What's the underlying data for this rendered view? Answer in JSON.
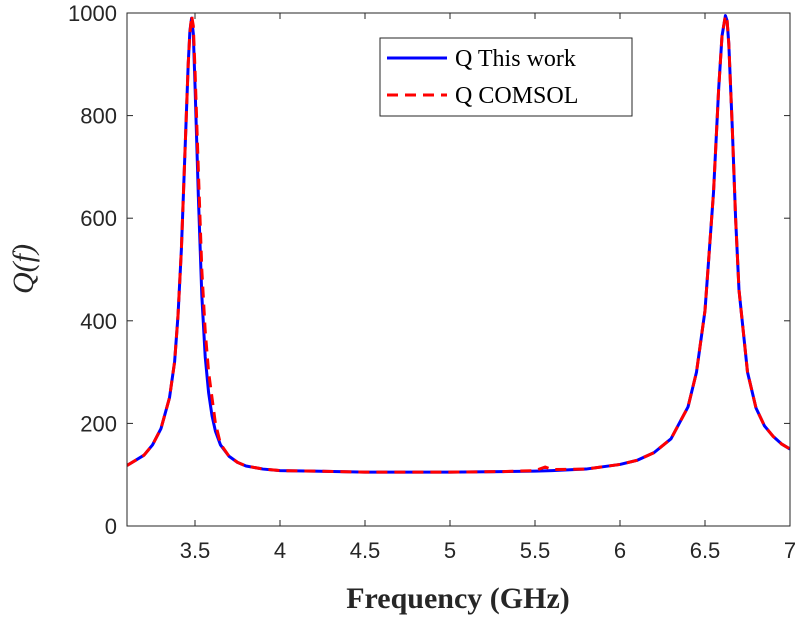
{
  "chart_data": {
    "type": "line",
    "title": "",
    "xlabel": "Frequency (GHz)",
    "ylabel": "Q(f)",
    "xlim": [
      3.1,
      7.0
    ],
    "ylim": [
      0,
      1000
    ],
    "xticks": [
      3.5,
      4,
      4.5,
      5,
      5.5,
      6,
      6.5,
      7
    ],
    "xtick_labels": [
      "3.5",
      "4",
      "4.5",
      "5",
      "5.5",
      "6",
      "6.5",
      "7"
    ],
    "yticks": [
      0,
      200,
      400,
      600,
      800,
      1000
    ],
    "ytick_labels": [
      "0",
      "200",
      "400",
      "600",
      "800",
      "1000"
    ],
    "grid": false,
    "legend_position": "top-right",
    "series": [
      {
        "name": "Q This work",
        "color": "#0000ff",
        "style": "solid",
        "x": [
          3.1,
          3.2,
          3.25,
          3.3,
          3.35,
          3.38,
          3.4,
          3.42,
          3.44,
          3.46,
          3.47,
          3.48,
          3.49,
          3.5,
          3.52,
          3.54,
          3.56,
          3.58,
          3.6,
          3.62,
          3.65,
          3.7,
          3.75,
          3.8,
          3.9,
          4.0,
          4.2,
          4.5,
          4.75,
          5.0,
          5.3,
          5.5,
          5.6,
          5.8,
          6.0,
          6.1,
          6.2,
          6.3,
          6.4,
          6.45,
          6.5,
          6.55,
          6.58,
          6.6,
          6.62,
          6.63,
          6.64,
          6.66,
          6.68,
          6.7,
          6.75,
          6.8,
          6.85,
          6.9,
          6.95,
          7.0
        ],
        "y": [
          118,
          138,
          158,
          190,
          250,
          320,
          410,
          540,
          720,
          900,
          965,
          990,
          960,
          860,
          640,
          450,
          330,
          260,
          215,
          185,
          158,
          136,
          124,
          117,
          111,
          108,
          107,
          105,
          105,
          105,
          106,
          107,
          108,
          111,
          120,
          128,
          143,
          170,
          232,
          300,
          420,
          650,
          850,
          955,
          995,
          985,
          940,
          780,
          600,
          460,
          300,
          230,
          195,
          175,
          160,
          150
        ]
      },
      {
        "name": "Q COMSOL",
        "color": "#ff0000",
        "style": "dashed",
        "x": [
          3.1,
          3.2,
          3.25,
          3.3,
          3.35,
          3.38,
          3.4,
          3.42,
          3.44,
          3.46,
          3.47,
          3.48,
          3.49,
          3.5,
          3.52,
          3.54,
          3.56,
          3.58,
          3.6,
          3.62,
          3.65,
          3.7,
          3.75,
          3.8,
          3.9,
          4.0,
          4.2,
          4.5,
          4.75,
          5.0,
          5.3,
          5.5,
          5.56,
          5.6,
          5.8,
          6.0,
          6.1,
          6.2,
          6.3,
          6.4,
          6.45,
          6.5,
          6.55,
          6.58,
          6.6,
          6.62,
          6.63,
          6.64,
          6.66,
          6.68,
          6.7,
          6.75,
          6.8,
          6.85,
          6.9,
          6.95,
          7.0
        ],
        "y": [
          118,
          138,
          158,
          190,
          250,
          320,
          410,
          540,
          720,
          900,
          960,
          995,
          975,
          890,
          690,
          500,
          380,
          300,
          250,
          200,
          160,
          136,
          124,
          117,
          111,
          108,
          107,
          105,
          105,
          105,
          106,
          108,
          115,
          110,
          111,
          120,
          128,
          143,
          170,
          232,
          300,
          420,
          650,
          850,
          955,
          995,
          985,
          940,
          780,
          600,
          460,
          300,
          230,
          195,
          175,
          160,
          150
        ]
      }
    ]
  }
}
